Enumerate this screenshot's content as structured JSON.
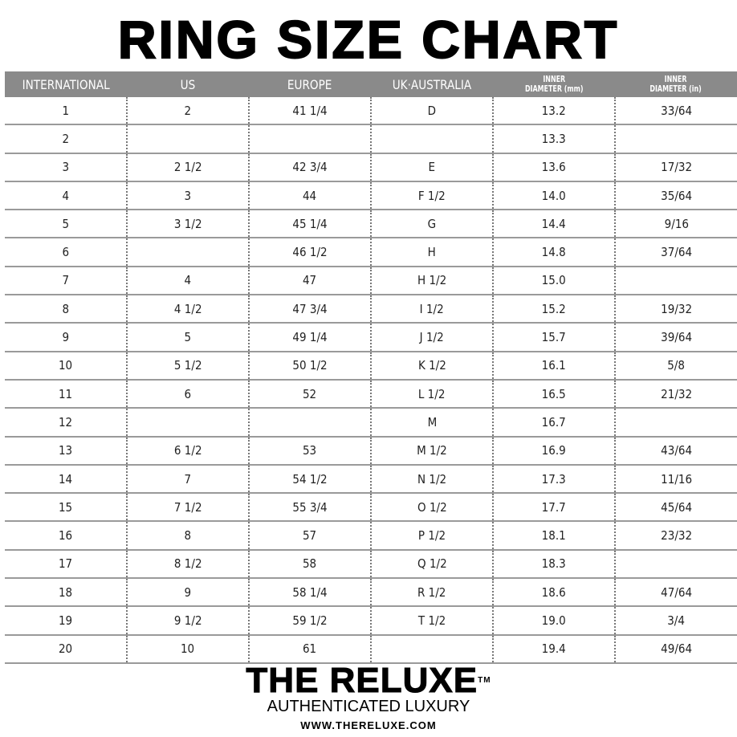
{
  "title": "RING SIZE CHART",
  "table": {
    "headers": [
      "INTERNATIONAL",
      "US",
      "EUROPE",
      "UK·AUSTRALIA",
      [
        "INNER",
        "DIAMETER (mm)"
      ],
      [
        "INNER",
        "DIAMETER (in)"
      ]
    ],
    "rows": [
      [
        "1",
        "2",
        "41 1/4",
        "D",
        "13.2",
        "33/64"
      ],
      [
        "2",
        "",
        "",
        "",
        "13.3",
        ""
      ],
      [
        "3",
        "2 1/2",
        "42 3/4",
        "E",
        "13.6",
        "17/32"
      ],
      [
        "4",
        "3",
        "44",
        "F 1/2",
        "14.0",
        "35/64"
      ],
      [
        "5",
        "3 1/2",
        "45 1/4",
        "G",
        "14.4",
        "9/16"
      ],
      [
        "6",
        "",
        "46 1/2",
        "H",
        "14.8",
        "37/64"
      ],
      [
        "7",
        "4",
        "47",
        "H 1/2",
        "15.0",
        ""
      ],
      [
        "8",
        "4 1/2",
        "47 3/4",
        "I 1/2",
        "15.2",
        "19/32"
      ],
      [
        "9",
        "5",
        "49 1/4",
        "J 1/2",
        "15.7",
        "39/64"
      ],
      [
        "10",
        "5 1/2",
        "50 1/2",
        "K 1/2",
        "16.1",
        "5/8"
      ],
      [
        "11",
        "6",
        "52",
        "L 1/2",
        "16.5",
        "21/32"
      ],
      [
        "12",
        "",
        "",
        "M",
        "16.7",
        ""
      ],
      [
        "13",
        "6 1/2",
        "53",
        "M 1/2",
        "16.9",
        "43/64"
      ],
      [
        "14",
        "7",
        "54 1/2",
        "N 1/2",
        "17.3",
        "11/16"
      ],
      [
        "15",
        "7 1/2",
        "55 3/4",
        "O 1/2",
        "17.7",
        "45/64"
      ],
      [
        "16",
        "8",
        "57",
        "P 1/2",
        "18.1",
        "23/32"
      ],
      [
        "17",
        "8 1/2",
        "58",
        "Q 1/2",
        "18.3",
        ""
      ],
      [
        "18",
        "9",
        "58 1/4",
        "R 1/2",
        "18.6",
        "47/64"
      ],
      [
        "19",
        "9 1/2",
        "59 1/2",
        "T 1/2",
        "19.0",
        "3/4"
      ],
      [
        "20",
        "10",
        "61",
        "",
        "19.4",
        "49/64"
      ]
    ]
  },
  "brand": {
    "name": "THE RELUXE",
    "trademark": "TM",
    "tagline": "AUTHENTICATED LUXURY",
    "url": "WWW.THERELUXE.COM"
  },
  "colors": {
    "header_bg": "#8a8a8a",
    "header_text": "#ffffff"
  }
}
